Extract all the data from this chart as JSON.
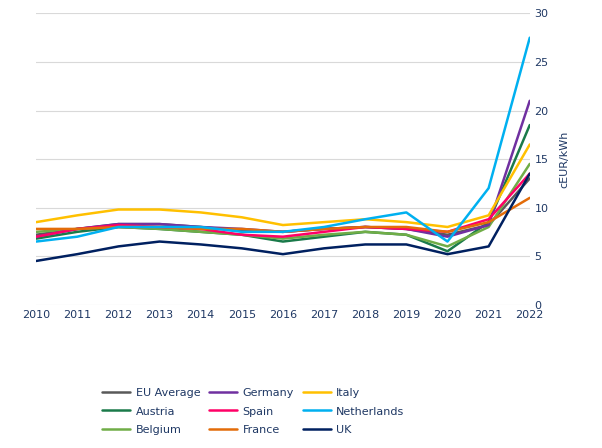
{
  "years": [
    2010,
    2011,
    2012,
    2013,
    2014,
    2015,
    2016,
    2017,
    2018,
    2019,
    2020,
    2021,
    2022
  ],
  "series": {
    "EU Average": {
      "color": "#595959",
      "values": [
        7.2,
        7.8,
        8.3,
        8.3,
        8.0,
        7.6,
        7.5,
        7.8,
        8.0,
        7.8,
        7.2,
        8.2,
        13.0
      ]
    },
    "Austria": {
      "color": "#1a7a4a",
      "values": [
        6.8,
        7.5,
        8.0,
        7.8,
        7.5,
        7.2,
        6.5,
        7.0,
        7.5,
        7.2,
        5.5,
        8.5,
        18.5
      ]
    },
    "Belgium": {
      "color": "#70ad47",
      "values": [
        7.5,
        7.8,
        8.0,
        7.8,
        7.5,
        7.2,
        6.8,
        7.2,
        7.5,
        7.2,
        6.0,
        8.0,
        14.5
      ]
    },
    "Germany": {
      "color": "#7030a0",
      "values": [
        7.0,
        7.8,
        8.3,
        8.3,
        8.0,
        7.8,
        7.5,
        7.8,
        8.0,
        7.8,
        7.0,
        8.2,
        21.0
      ]
    },
    "Spain": {
      "color": "#ff0066",
      "values": [
        7.0,
        7.8,
        8.2,
        8.0,
        7.8,
        7.2,
        7.0,
        7.5,
        8.0,
        7.8,
        7.5,
        8.8,
        13.5
      ]
    },
    "France": {
      "color": "#e36c09",
      "values": [
        7.8,
        7.8,
        8.0,
        8.0,
        7.8,
        7.8,
        7.5,
        7.8,
        8.0,
        8.0,
        7.5,
        8.5,
        11.0
      ]
    },
    "Italy": {
      "color": "#ffc000",
      "values": [
        8.5,
        9.2,
        9.8,
        9.8,
        9.5,
        9.0,
        8.2,
        8.5,
        8.8,
        8.5,
        8.0,
        9.2,
        16.5
      ]
    },
    "Netherlands": {
      "color": "#00b0f0",
      "values": [
        6.5,
        7.0,
        8.0,
        8.0,
        8.0,
        7.5,
        7.5,
        8.0,
        8.8,
        9.5,
        6.5,
        12.0,
        27.5
      ]
    },
    "UK": {
      "color": "#002060",
      "values": [
        4.5,
        5.2,
        6.0,
        6.5,
        6.2,
        5.8,
        5.2,
        5.8,
        6.2,
        6.2,
        5.2,
        6.0,
        13.5
      ]
    }
  },
  "ylabel": "cEUR/kWh",
  "ylim": [
    0,
    30
  ],
  "yticks": [
    0,
    5,
    10,
    15,
    20,
    25,
    30
  ],
  "xlim": [
    2010,
    2022
  ],
  "xticks": [
    2010,
    2011,
    2012,
    2013,
    2014,
    2015,
    2016,
    2017,
    2018,
    2019,
    2020,
    2021,
    2022
  ],
  "background_color": "#ffffff",
  "grid_color": "#d9d9d9",
  "text_color": "#1f3864",
  "legend_order": [
    "EU Average",
    "Austria",
    "Belgium",
    "Germany",
    "Spain",
    "France",
    "Italy",
    "Netherlands",
    "UK"
  ]
}
